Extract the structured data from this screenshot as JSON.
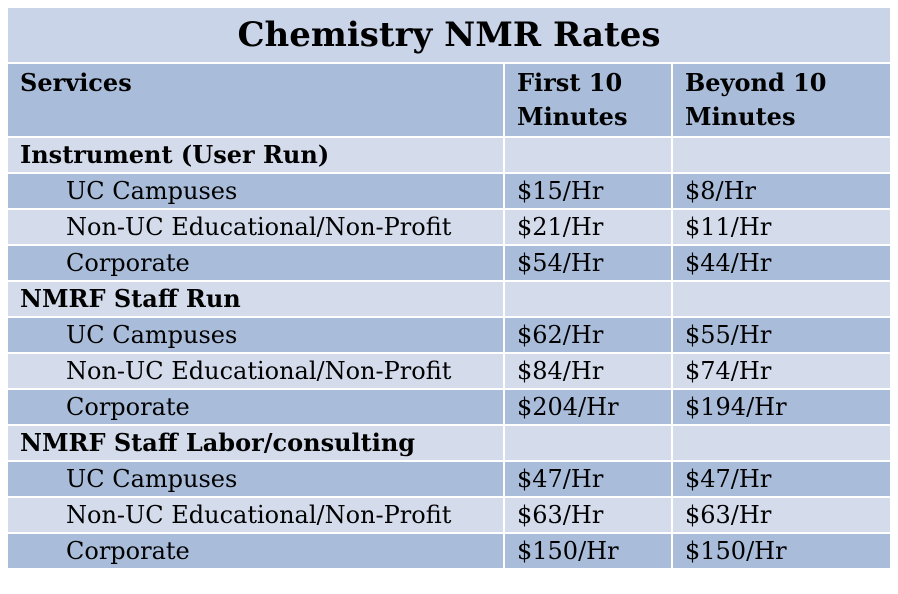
{
  "title": "Chemistry NMR Rates",
  "headers": {
    "services": "Services",
    "first_10": [
      "First 10",
      "Minutes"
    ],
    "beyond_10": [
      "Beyond 10",
      "Minutes"
    ]
  },
  "groups": [
    {
      "name": "Instrument (User Run)",
      "rows": [
        {
          "service": "UC Campuses",
          "first": "$15/Hr",
          "beyond": "$8/Hr"
        },
        {
          "service": "Non-UC Educational/Non-Profit",
          "first": "$21/Hr",
          "beyond": "$11/Hr"
        },
        {
          "service": "Corporate",
          "first": "$54/Hr",
          "beyond": "$44/Hr"
        }
      ]
    },
    {
      "name": "NMRF Staff Run",
      "rows": [
        {
          "service": "UC Campuses",
          "first": "$62/Hr",
          "beyond": "$55/Hr"
        },
        {
          "service": "Non-UC Educational/Non-Profit",
          "first": "$84/Hr",
          "beyond": "$74/Hr"
        },
        {
          "service": "Corporate",
          "first": "$204/Hr",
          "beyond": "$194/Hr"
        }
      ]
    },
    {
      "name": "NMRF Staff Labor/consulting",
      "rows": [
        {
          "service": "UC Campuses",
          "first": "$47/Hr",
          "beyond": "$47/Hr"
        },
        {
          "service": "Non-UC Educational/Non-Profit",
          "first": "$63/Hr",
          "beyond": "$63/Hr"
        },
        {
          "service": "Corporate",
          "first": "$150/Hr",
          "beyond": "$150/Hr"
        }
      ]
    }
  ]
}
